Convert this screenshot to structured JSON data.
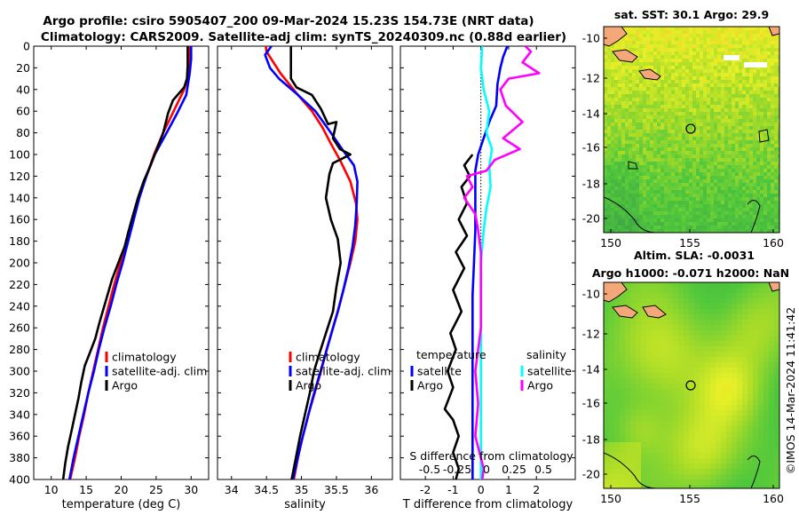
{
  "header": {
    "title_line1": "Argo profile: csiro 5905407_200 09-Mar-2024 15.23S 154.73E (NRT data)",
    "title_line2": "Climatology: CARS2009. Satellite-adj clim: synTS_20240309.nc (0.88d earlier)"
  },
  "colors": {
    "climatology": "#ff0000",
    "satellite": "#0000ff",
    "argo": "#000000",
    "sal_satellite": "#00ffff",
    "sal_argo": "#ff00ff"
  },
  "chart_data": [
    {
      "id": "temperature",
      "type": "line",
      "xlabel": "temperature (deg C)",
      "ylabel": "",
      "xlim": [
        7.5,
        32.5
      ],
      "ylim": [
        400,
        0
      ],
      "xticks": [
        10,
        15,
        20,
        25,
        30
      ],
      "yticks": [
        0,
        20,
        40,
        60,
        80,
        100,
        120,
        140,
        160,
        180,
        200,
        220,
        240,
        260,
        280,
        300,
        320,
        340,
        360,
        380,
        400
      ],
      "legend": [
        "climatology",
        "satellite-adj. clim",
        "Argo"
      ],
      "series": [
        {
          "name": "climatology",
          "color": "climatology",
          "points": [
            [
              29.8,
              0
            ],
            [
              29.8,
              15
            ],
            [
              29.7,
              25
            ],
            [
              29.0,
              40
            ],
            [
              27.5,
              60
            ],
            [
              26.0,
              80
            ],
            [
              24.7,
              100
            ],
            [
              23.6,
              120
            ],
            [
              22.5,
              140
            ],
            [
              21.6,
              160
            ],
            [
              20.8,
              180
            ],
            [
              19.9,
              200
            ],
            [
              19.0,
              220
            ],
            [
              18.2,
              240
            ],
            [
              17.4,
              260
            ],
            [
              16.7,
              280
            ],
            [
              16.0,
              300
            ],
            [
              15.3,
              320
            ],
            [
              14.7,
              340
            ],
            [
              14.0,
              360
            ],
            [
              13.4,
              380
            ],
            [
              12.7,
              400
            ]
          ]
        },
        {
          "name": "satellite-adj. clim",
          "color": "satellite",
          "points": [
            [
              30.0,
              0
            ],
            [
              30.0,
              12
            ],
            [
              29.8,
              25
            ],
            [
              29.3,
              45
            ],
            [
              28.0,
              62
            ],
            [
              26.5,
              80
            ],
            [
              24.8,
              100
            ],
            [
              23.6,
              120
            ],
            [
              22.6,
              140
            ],
            [
              21.8,
              160
            ],
            [
              21.0,
              180
            ],
            [
              20.2,
              200
            ],
            [
              19.3,
              220
            ],
            [
              18.5,
              240
            ],
            [
              17.6,
              260
            ],
            [
              16.8,
              280
            ],
            [
              16.1,
              300
            ],
            [
              15.3,
              320
            ],
            [
              14.6,
              340
            ],
            [
              13.9,
              360
            ],
            [
              13.2,
              380
            ],
            [
              12.6,
              400
            ]
          ]
        },
        {
          "name": "Argo",
          "color": "argo",
          "points": [
            [
              29.5,
              0
            ],
            [
              29.5,
              18
            ],
            [
              29.4,
              30
            ],
            [
              29.0,
              38
            ],
            [
              27.4,
              50
            ],
            [
              26.7,
              62
            ],
            [
              26.0,
              80
            ],
            [
              25.1,
              95
            ],
            [
              24.2,
              110
            ],
            [
              23.2,
              125
            ],
            [
              22.4,
              140
            ],
            [
              21.6,
              158
            ],
            [
              21.0,
              172
            ],
            [
              20.5,
              185
            ],
            [
              19.6,
              200
            ],
            [
              18.7,
              215
            ],
            [
              17.8,
              235
            ],
            [
              16.9,
              255
            ],
            [
              16.3,
              270
            ],
            [
              15.4,
              285
            ],
            [
              14.8,
              295
            ],
            [
              14.3,
              310
            ],
            [
              13.9,
              325
            ],
            [
              13.4,
              340
            ],
            [
              12.9,
              355
            ],
            [
              12.4,
              370
            ],
            [
              12.0,
              385
            ],
            [
              11.7,
              400
            ]
          ]
        }
      ]
    },
    {
      "id": "salinity",
      "type": "line",
      "xlabel": "salinity",
      "ylabel": "",
      "xlim": [
        33.8,
        36.3
      ],
      "ylim": [
        400,
        0
      ],
      "xticks": [
        34,
        34.5,
        35,
        35.5,
        36
      ],
      "legend": [
        "climatology",
        "satellite-adj. clim",
        "Argo"
      ],
      "series": [
        {
          "name": "climatology",
          "color": "climatology",
          "points": [
            [
              34.49,
              0
            ],
            [
              34.5,
              5
            ],
            [
              34.7,
              25
            ],
            [
              34.95,
              45
            ],
            [
              35.15,
              60
            ],
            [
              35.3,
              75
            ],
            [
              35.42,
              90
            ],
            [
              35.55,
              105
            ],
            [
              35.7,
              125
            ],
            [
              35.78,
              145
            ],
            [
              35.8,
              160
            ],
            [
              35.77,
              180
            ],
            [
              35.7,
              200
            ],
            [
              35.62,
              220
            ],
            [
              35.54,
              240
            ],
            [
              35.45,
              260
            ],
            [
              35.36,
              280
            ],
            [
              35.28,
              300
            ],
            [
              35.19,
              320
            ],
            [
              35.1,
              340
            ],
            [
              35.02,
              360
            ],
            [
              34.95,
              380
            ],
            [
              34.89,
              400
            ]
          ]
        },
        {
          "name": "satellite-adj. clim",
          "color": "satellite",
          "points": [
            [
              34.57,
              0
            ],
            [
              34.48,
              8
            ],
            [
              34.55,
              20
            ],
            [
              34.68,
              30
            ],
            [
              34.95,
              45
            ],
            [
              35.2,
              60
            ],
            [
              35.4,
              78
            ],
            [
              35.58,
              95
            ],
            [
              35.75,
              110
            ],
            [
              35.8,
              125
            ],
            [
              35.79,
              145
            ],
            [
              35.77,
              165
            ],
            [
              35.73,
              185
            ],
            [
              35.67,
              205
            ],
            [
              35.6,
              225
            ],
            [
              35.52,
              245
            ],
            [
              35.43,
              265
            ],
            [
              35.34,
              285
            ],
            [
              35.25,
              305
            ],
            [
              35.16,
              325
            ],
            [
              35.08,
              345
            ],
            [
              35.0,
              365
            ],
            [
              34.93,
              385
            ],
            [
              34.88,
              400
            ]
          ]
        },
        {
          "name": "Argo",
          "color": "argo",
          "points": [
            [
              34.85,
              0
            ],
            [
              34.85,
              30
            ],
            [
              34.93,
              38
            ],
            [
              35.15,
              45
            ],
            [
              35.28,
              58
            ],
            [
              35.38,
              72
            ],
            [
              35.5,
              70
            ],
            [
              35.45,
              85
            ],
            [
              35.55,
              95
            ],
            [
              35.7,
              100
            ],
            [
              35.45,
              108
            ],
            [
              35.4,
              118
            ],
            [
              35.35,
              140
            ],
            [
              35.42,
              160
            ],
            [
              35.52,
              178
            ],
            [
              35.56,
              200
            ],
            [
              35.5,
              222
            ],
            [
              35.45,
              245
            ],
            [
              35.35,
              265
            ],
            [
              35.25,
              285
            ],
            [
              35.18,
              300
            ],
            [
              35.12,
              320
            ],
            [
              35.05,
              340
            ],
            [
              34.98,
              360
            ],
            [
              34.92,
              380
            ],
            [
              34.86,
              400
            ]
          ]
        }
      ]
    },
    {
      "id": "differences",
      "type": "line",
      "xlabel": "T difference from climatology",
      "xlabel_secondary": "S difference from climatology",
      "ylabel": "",
      "xlim": [
        -2.9,
        3.4
      ],
      "ylim": [
        400,
        0
      ],
      "xticks": [
        -2,
        -1,
        0,
        1,
        2
      ],
      "s_xticks": [
        "-0.5",
        "-0.25",
        "0",
        "0.25",
        "0.5"
      ],
      "legend_temperature_title": "temperature",
      "legend_salinity_title": "salinity",
      "legend_temperature": [
        "satellite",
        "Argo"
      ],
      "legend_salinity": [
        "satellite",
        "Argo"
      ],
      "series": [
        {
          "name": "T satellite",
          "color": "satellite",
          "points": [
            [
              0.95,
              0
            ],
            [
              0.8,
              10
            ],
            [
              0.7,
              20
            ],
            [
              0.6,
              35
            ],
            [
              0.55,
              55
            ],
            [
              0.3,
              70
            ],
            [
              0.1,
              85
            ],
            [
              -0.1,
              100
            ],
            [
              -0.2,
              115
            ],
            [
              -0.2,
              140
            ],
            [
              -0.2,
              170
            ],
            [
              -0.25,
              200
            ],
            [
              -0.3,
              230
            ],
            [
              -0.3,
              260
            ],
            [
              -0.3,
              300
            ],
            [
              -0.3,
              340
            ],
            [
              -0.3,
              400
            ]
          ]
        },
        {
          "name": "T Argo",
          "color": "argo",
          "points": [
            [
              -0.3,
              100
            ],
            [
              -0.6,
              110
            ],
            [
              -0.4,
              120
            ],
            [
              -0.7,
              130
            ],
            [
              -0.5,
              145
            ],
            [
              -0.8,
              160
            ],
            [
              -0.5,
              175
            ],
            [
              -0.9,
              190
            ],
            [
              -0.6,
              205
            ],
            [
              -1.0,
              225
            ],
            [
              -0.7,
              245
            ],
            [
              -1.1,
              265
            ],
            [
              -0.9,
              280
            ],
            [
              -1.2,
              300
            ],
            [
              -1.0,
              315
            ],
            [
              -1.3,
              335
            ],
            [
              -1.0,
              345
            ],
            [
              -0.8,
              360
            ],
            [
              -1.0,
              375
            ],
            [
              -0.8,
              390
            ],
            [
              -0.9,
              400
            ]
          ]
        },
        {
          "name": "S satellite",
          "color": "sal_satellite",
          "points": [
            [
              0.05,
              0
            ],
            [
              0.0,
              20
            ],
            [
              0.1,
              40
            ],
            [
              0.3,
              60
            ],
            [
              0.2,
              80
            ],
            [
              0.4,
              95
            ],
            [
              0.3,
              110
            ],
            [
              0.35,
              130
            ],
            [
              0.2,
              150
            ],
            [
              0.1,
              170
            ],
            [
              0.0,
              200
            ],
            [
              0.0,
              240
            ],
            [
              0.0,
              280
            ],
            [
              0.0,
              320
            ],
            [
              0.0,
              360
            ],
            [
              0.0,
              400
            ]
          ]
        },
        {
          "name": "S Argo",
          "color": "sal_argo",
          "points": [
            [
              1.6,
              0
            ],
            [
              1.8,
              5
            ],
            [
              1.5,
              15
            ],
            [
              2.1,
              25
            ],
            [
              1.0,
              30
            ],
            [
              0.7,
              40
            ],
            [
              0.9,
              55
            ],
            [
              1.5,
              70
            ],
            [
              0.8,
              85
            ],
            [
              1.4,
              95
            ],
            [
              0.5,
              105
            ],
            [
              0.2,
              115
            ],
            [
              -0.5,
              120
            ],
            [
              -0.3,
              130
            ],
            [
              -0.6,
              140
            ],
            [
              -0.2,
              155
            ],
            [
              -0.1,
              170
            ],
            [
              0.0,
              190
            ],
            [
              0.0,
              230
            ],
            [
              0.0,
              260
            ],
            [
              -0.2,
              300
            ],
            [
              -0.1,
              330
            ],
            [
              -0.2,
              360
            ],
            [
              0.1,
              390
            ],
            [
              0.05,
              400
            ]
          ]
        }
      ]
    }
  ],
  "maps": {
    "sst": {
      "title": "sat. SST: 30.1 Argo: 29.9",
      "yticks": [
        "-10",
        "-12",
        "-14",
        "-16",
        "-18",
        "-20"
      ],
      "xticks": [
        "150",
        "155",
        "160"
      ]
    },
    "sla": {
      "title_line1": "Altim. SLA: -0.0031",
      "title_line2": "Argo h1000: -0.071 h2000: NaN",
      "yticks": [
        "-10",
        "-12",
        "-14",
        "-16",
        "-18",
        "-20"
      ],
      "xticks": [
        "150",
        "155",
        "160"
      ]
    }
  },
  "stamp": "©IMOS 14-Mar-2024 11:41:42"
}
